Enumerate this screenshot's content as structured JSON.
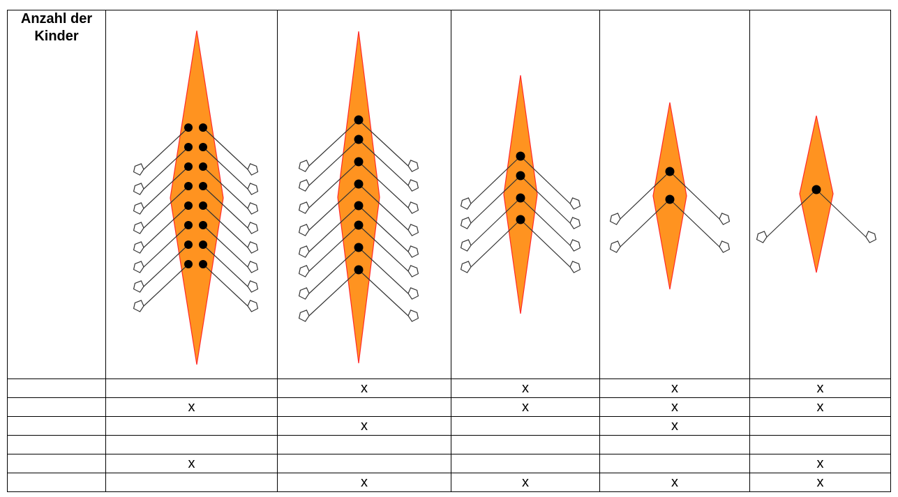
{
  "header": {
    "title": "Anzahl der Kinder"
  },
  "boats": [
    {
      "name": "boat-16",
      "rowers": 16,
      "layout": "pairs"
    },
    {
      "name": "boat-8",
      "rowers": 8,
      "layout": "single"
    },
    {
      "name": "boat-4",
      "rowers": 4,
      "layout": "single"
    },
    {
      "name": "boat-2",
      "rowers": 2,
      "layout": "single"
    },
    {
      "name": "boat-1",
      "rowers": 1,
      "layout": "single"
    }
  ],
  "colors": {
    "hull_fill": "#FF9320",
    "hull_stroke": "#FF2A2A",
    "rigger": "#333333",
    "seat": "#000000"
  },
  "rows": [
    {
      "label": "",
      "marks": [
        "",
        "x",
        "x",
        "x",
        "x"
      ]
    },
    {
      "label": "",
      "marks": [
        "x",
        "",
        "x",
        "x",
        "x"
      ]
    },
    {
      "label": "",
      "marks": [
        "",
        "x",
        "",
        "x",
        ""
      ]
    },
    {
      "label": "",
      "marks": [
        "",
        "",
        "",
        "",
        ""
      ]
    },
    {
      "label": "",
      "marks": [
        "x",
        "",
        "",
        "",
        "x"
      ]
    },
    {
      "label": "",
      "marks": [
        "",
        "x",
        "x",
        "x",
        "x"
      ]
    }
  ]
}
